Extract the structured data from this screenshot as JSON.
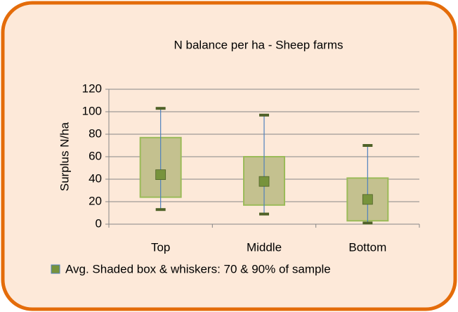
{
  "chart_data": {
    "type": "box",
    "title": "N balance per ha - Sheep farms",
    "y_label": "Surplus N/ha",
    "categories": [
      "Top",
      "Middle",
      "Bottom"
    ],
    "whisker_low": [
      13,
      9,
      1
    ],
    "box_low": [
      24,
      17,
      3
    ],
    "box_high": [
      77,
      60,
      41
    ],
    "whisker_high": [
      103,
      97,
      70
    ],
    "avg": [
      44,
      38,
      22
    ],
    "legend": "Avg. Shaded box & whiskers: 70 & 90% of sample",
    "box_color": "#c4c18f",
    "box_edge": "#9bbb59",
    "whisker_color": "#4f81bd",
    "cap_color": "#4f6228",
    "avg_color": "#77933c",
    "ylim": [
      0,
      120
    ],
    "yticks": [
      0,
      20,
      40,
      60,
      80,
      100,
      120
    ],
    "grid": true
  }
}
